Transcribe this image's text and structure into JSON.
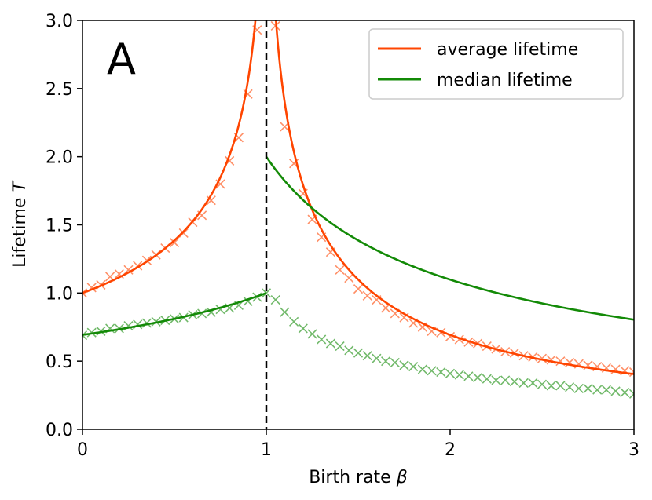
{
  "chart_data": {
    "type": "line",
    "panel_label": "A",
    "xlabel_text": "Birth rate ",
    "xlabel_symbol": "β",
    "ylabel_text": "Lifetime ",
    "ylabel_symbol": "T",
    "xlim": [
      0,
      3
    ],
    "ylim": [
      0,
      3
    ],
    "x_ticks": [
      0,
      1,
      2,
      3
    ],
    "x_tick_labels": [
      "0",
      "1",
      "2",
      "3"
    ],
    "y_ticks": [
      0,
      0.5,
      1,
      1.5,
      2,
      2.5,
      3
    ],
    "y_tick_labels": [
      "0.0",
      "0.5",
      "1.0",
      "1.5",
      "2.0",
      "2.5",
      "3.0"
    ],
    "vline_x": 1,
    "legend_position": "top-right",
    "colors": {
      "average": "#ff4500",
      "median": "#138a07",
      "vline": "#000000"
    },
    "series": [
      {
        "name": "average lifetime",
        "key": "average",
        "curve": "average",
        "markers_x": [
          0.0,
          0.05,
          0.1,
          0.15,
          0.2,
          0.25,
          0.3,
          0.35,
          0.4,
          0.45,
          0.5,
          0.55,
          0.6,
          0.65,
          0.7,
          0.75,
          0.8,
          0.85,
          0.9,
          0.95,
          1.05,
          1.1,
          1.15,
          1.2,
          1.25,
          1.3,
          1.35,
          1.4,
          1.45,
          1.5,
          1.55,
          1.6,
          1.65,
          1.7,
          1.75,
          1.8,
          1.85,
          1.9,
          1.95,
          2.0,
          2.05,
          2.1,
          2.15,
          2.2,
          2.25,
          2.3,
          2.35,
          2.4,
          2.45,
          2.5,
          2.55,
          2.6,
          2.65,
          2.7,
          2.75,
          2.8,
          2.85,
          2.9,
          2.95,
          3.0
        ],
        "markers_y": [
          1.0,
          1.04,
          1.06,
          1.12,
          1.14,
          1.17,
          1.2,
          1.24,
          1.28,
          1.33,
          1.37,
          1.44,
          1.52,
          1.57,
          1.68,
          1.8,
          1.97,
          2.14,
          2.46,
          2.93,
          2.96,
          2.22,
          1.95,
          1.73,
          1.54,
          1.41,
          1.3,
          1.17,
          1.11,
          1.03,
          0.98,
          0.95,
          0.89,
          0.85,
          0.82,
          0.78,
          0.75,
          0.72,
          0.71,
          0.68,
          0.66,
          0.64,
          0.63,
          0.61,
          0.59,
          0.57,
          0.56,
          0.54,
          0.53,
          0.52,
          0.51,
          0.5,
          0.49,
          0.48,
          0.47,
          0.46,
          0.45,
          0.44,
          0.43,
          0.42
        ]
      },
      {
        "name": "median lifetime",
        "key": "median",
        "curve": "median",
        "markers_x": [
          0.0,
          0.05,
          0.1,
          0.15,
          0.2,
          0.25,
          0.3,
          0.35,
          0.4,
          0.45,
          0.5,
          0.55,
          0.6,
          0.65,
          0.7,
          0.75,
          0.8,
          0.85,
          0.9,
          0.95,
          1.0,
          1.05,
          1.1,
          1.15,
          1.2,
          1.25,
          1.3,
          1.35,
          1.4,
          1.45,
          1.5,
          1.55,
          1.6,
          1.65,
          1.7,
          1.75,
          1.8,
          1.85,
          1.9,
          1.95,
          2.0,
          2.05,
          2.1,
          2.15,
          2.2,
          2.25,
          2.3,
          2.35,
          2.4,
          2.45,
          2.5,
          2.55,
          2.6,
          2.65,
          2.7,
          2.75,
          2.8,
          2.85,
          2.9,
          2.95,
          3.0
        ],
        "markers_y": [
          0.69,
          0.71,
          0.72,
          0.74,
          0.74,
          0.76,
          0.77,
          0.78,
          0.79,
          0.8,
          0.81,
          0.82,
          0.84,
          0.85,
          0.86,
          0.88,
          0.89,
          0.91,
          0.94,
          0.97,
          1.0,
          0.95,
          0.86,
          0.79,
          0.74,
          0.7,
          0.66,
          0.63,
          0.61,
          0.58,
          0.56,
          0.54,
          0.52,
          0.5,
          0.49,
          0.47,
          0.46,
          0.44,
          0.43,
          0.42,
          0.41,
          0.4,
          0.39,
          0.38,
          0.37,
          0.36,
          0.36,
          0.35,
          0.34,
          0.34,
          0.33,
          0.32,
          0.32,
          0.31,
          0.3,
          0.3,
          0.29,
          0.29,
          0.28,
          0.27,
          0.26
        ]
      }
    ]
  }
}
